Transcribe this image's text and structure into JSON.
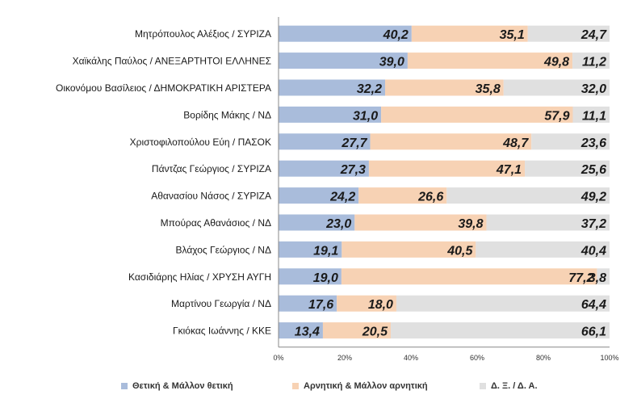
{
  "chart_data": {
    "type": "bar",
    "orientation": "horizontal",
    "stacked": true,
    "categories": [
      "Μητρόπουλος Αλέξιος / ΣΥΡΙΖΑ",
      "Χαϊκάλης Παύλος / ΑΝΕΞΑΡΤΗΤΟΙ ΕΛΛΗΝΕΣ",
      "Οικονόμου Βασίλειος / ΔΗΜΟΚΡΑΤΙΚΗ ΑΡΙΣΤΕΡΑ",
      "Βορίδης Μάκης / ΝΔ",
      "Χριστοφιλοπούλου Εύη / ΠΑΣΟΚ",
      "Πάντζας Γεώργιος / ΣΥΡΙΖΑ",
      "Αθανασίου Νάσος / ΣΥΡΙΖΑ",
      "Μπούρας Αθανάσιος / ΝΔ",
      "Βλάχος Γεώργιος / ΝΔ",
      "Κασιδιάρης Ηλίας / ΧΡΥΣΗ ΑΥΓΗ",
      "Μαρτίνου Γεωργία / ΝΔ",
      "Γκιόκας Ιωάννης / ΚΚΕ"
    ],
    "series": [
      {
        "name": "Θετική & Μάλλον θετική",
        "color": "#a9bcdb",
        "values": [
          40.2,
          39.0,
          32.2,
          31.0,
          27.7,
          27.3,
          24.2,
          23.0,
          19.1,
          19.0,
          17.6,
          13.4
        ],
        "labels": [
          "40,2",
          "39,0",
          "32,2",
          "31,0",
          "27,7",
          "27,3",
          "24,2",
          "23,0",
          "19,1",
          "19,0",
          "17,6",
          "13,4"
        ]
      },
      {
        "name": "Αρνητική & Μάλλον αρνητική",
        "color": "#f7d2b4",
        "values": [
          35.1,
          49.8,
          35.8,
          57.9,
          48.7,
          47.1,
          26.6,
          39.8,
          40.5,
          77.2,
          18.0,
          20.5
        ],
        "labels": [
          "35,1",
          "49,8",
          "35,8",
          "57,9",
          "48,7",
          "47,1",
          "26,6",
          "39,8",
          "40,5",
          "77,2",
          "18,0",
          "20,5"
        ]
      },
      {
        "name": "Δ. Ξ. / Δ. Α.",
        "color": "#e0e0e0",
        "values": [
          24.7,
          11.2,
          32.0,
          11.1,
          23.6,
          25.6,
          49.2,
          37.2,
          40.4,
          3.8,
          64.4,
          66.1
        ],
        "labels": [
          "24,7",
          "11,2",
          "32,0",
          "11,1",
          "23,6",
          "25,6",
          "49,2",
          "37,2",
          "40,4",
          "3,8",
          "64,4",
          "66,1"
        ]
      }
    ],
    "xlim": [
      0,
      100
    ],
    "xticks": [
      "0%",
      "20%",
      "40%",
      "60%",
      "80%",
      "100%"
    ],
    "legend_position": "bottom",
    "grid": false
  }
}
